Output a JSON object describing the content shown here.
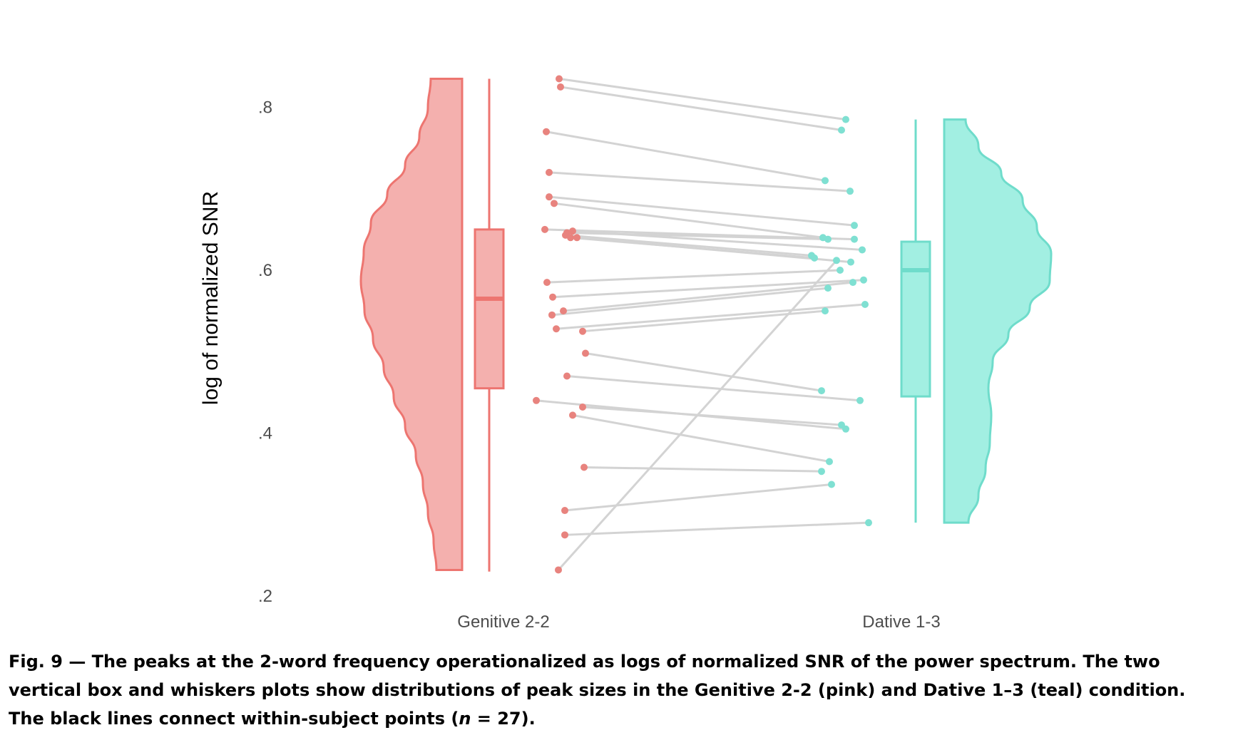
{
  "chart_data": {
    "type": "raincloud",
    "ylabel": "log of normalized SNR",
    "ylim": [
      0.2,
      0.85
    ],
    "yticks": [
      {
        "value": 0.2,
        "label": ".2"
      },
      {
        "value": 0.4,
        "label": ".4"
      },
      {
        "value": 0.6,
        "label": ".6"
      },
      {
        "value": 0.8,
        "label": ".8"
      }
    ],
    "grid": false,
    "categories": [
      "Genitive 2-2",
      "Dative 1-3"
    ],
    "colors": {
      "genitive_fill": "#f4b0ae",
      "genitive_line": "#ed7570",
      "dative_fill": "#a2efe2",
      "dative_line": "#6fdccb",
      "genitive_point": "#e8837e",
      "dative_point": "#7fe0d2",
      "connector": "#d3d3d3"
    },
    "series": [
      {
        "name": "Genitive 2-2",
        "box": {
          "min": 0.23,
          "q1": 0.455,
          "median": 0.565,
          "q3": 0.65,
          "max": 0.835
        },
        "points": [
          0.835,
          0.825,
          0.77,
          0.72,
          0.69,
          0.682,
          0.646,
          0.65,
          0.648,
          0.643,
          0.64,
          0.64,
          0.585,
          0.567,
          0.55,
          0.545,
          0.528,
          0.525,
          0.498,
          0.47,
          0.44,
          0.432,
          0.422,
          0.358,
          0.305,
          0.275,
          0.232
        ]
      },
      {
        "name": "Dative 1-3",
        "box": {
          "min": 0.29,
          "q1": 0.445,
          "median": 0.6,
          "q3": 0.635,
          "max": 0.785
        },
        "points": [
          0.785,
          0.772,
          0.71,
          0.697,
          0.655,
          0.64,
          0.638,
          0.638,
          0.625,
          0.618,
          0.615,
          0.61,
          0.6,
          0.588,
          0.585,
          0.578,
          0.558,
          0.55,
          0.452,
          0.44,
          0.405,
          0.41,
          0.365,
          0.353,
          0.337,
          0.29,
          0.612
        ]
      }
    ]
  },
  "caption": {
    "line1": "Fig. 9 — The peaks at the 2-word frequency operationalized as logs of normalized SNR of the power spectrum. The two",
    "line2": "vertical box and whiskers plots show distributions of peak sizes in the Genitive 2-2 (pink) and Dative 1–3 (teal) condition.",
    "line3_pre": "The black lines connect within-subject points (",
    "line3_var": "n",
    "line3_post": " = 27)."
  }
}
